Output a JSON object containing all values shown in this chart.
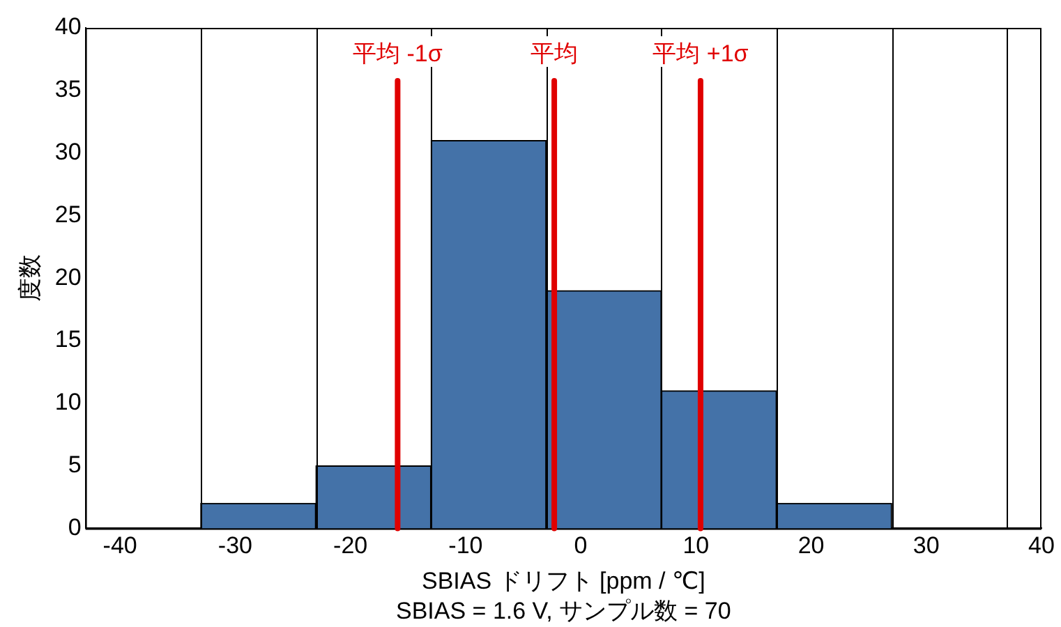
{
  "chart_data": {
    "type": "histogram",
    "xlabel": "SBIAS ドリフト [ppm / ℃]",
    "ylabel": "度数",
    "bins": [
      -43,
      -33,
      -23,
      -13,
      -3,
      7,
      17,
      27,
      37
    ],
    "values": [
      0,
      2,
      5,
      31,
      19,
      11,
      2,
      0
    ],
    "color": "#4472a8",
    "xlim": [
      -43,
      40
    ],
    "xticks": [
      -40,
      -30,
      -20,
      -10,
      0,
      10,
      20,
      30,
      40
    ],
    "ylim": [
      0,
      40
    ],
    "yticks": [
      0,
      5,
      10,
      15,
      20,
      25,
      30,
      35,
      40
    ],
    "ref_lines": [
      {
        "axis": "x",
        "value": -15.9,
        "label": "平均 -1σ",
        "color": "#e00000"
      },
      {
        "axis": "x",
        "value": -2.3,
        "label": "平均",
        "color": "#e00000"
      },
      {
        "axis": "x",
        "value": 10.4,
        "label": "平均 +1σ",
        "color": "#e00000"
      }
    ],
    "annotations": [
      "SBIAS = 1.6 V, サンプル数 = 70"
    ],
    "legend": false
  }
}
